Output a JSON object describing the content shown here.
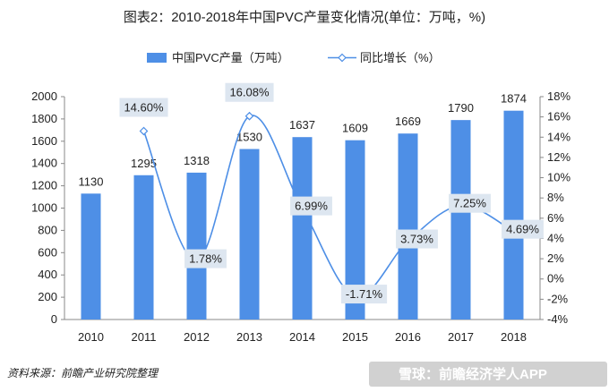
{
  "chart_data": {
    "type": "bar",
    "title": "图表2：2010-2018年中国PVC产量变化情况(单位：万吨，%)",
    "categories": [
      "2010",
      "2011",
      "2012",
      "2013",
      "2014",
      "2015",
      "2016",
      "2017",
      "2018"
    ],
    "series": [
      {
        "name": "中国PVC产量（万吨）",
        "type": "bar",
        "axis": "left",
        "values": [
          1130,
          1295,
          1318,
          1530,
          1637,
          1609,
          1669,
          1790,
          1874
        ],
        "labels": [
          "1130",
          "1295",
          "1318",
          "1530",
          "1637",
          "1609",
          "1669",
          "1790",
          "1874"
        ]
      },
      {
        "name": "同比增长（%）",
        "type": "line",
        "axis": "right",
        "smooth": true,
        "values": [
          null,
          14.6,
          1.78,
          16.08,
          6.99,
          -1.71,
          3.73,
          7.25,
          4.69
        ],
        "labels": [
          "",
          "14.60%",
          "1.78%",
          "16.08%",
          "6.99%",
          "-1.71%",
          "3.73%",
          "7.25%",
          "4.69%"
        ]
      }
    ],
    "y_left": {
      "ylim": [
        0,
        2000
      ],
      "ticks": [
        "0",
        "200",
        "400",
        "600",
        "800",
        "1000",
        "1200",
        "1400",
        "1600",
        "1800",
        "2000"
      ]
    },
    "y_right": {
      "ylim": [
        -4,
        18
      ],
      "ticks": [
        "-4%",
        "-2%",
        "0%",
        "2%",
        "4%",
        "6%",
        "8%",
        "10%",
        "12%",
        "14%",
        "16%",
        "18%"
      ]
    },
    "grid": false,
    "legend": "top",
    "source": "资料来源：前瞻产业研究院整理",
    "watermark": "雪球：前瞻经济学人APP"
  },
  "colors": {
    "bar": "#4E8FE6",
    "line": "#4E8FE6",
    "label_box": "#DDE6F0",
    "axis": "#888888",
    "watermark_bg": "#C9C9C9"
  }
}
